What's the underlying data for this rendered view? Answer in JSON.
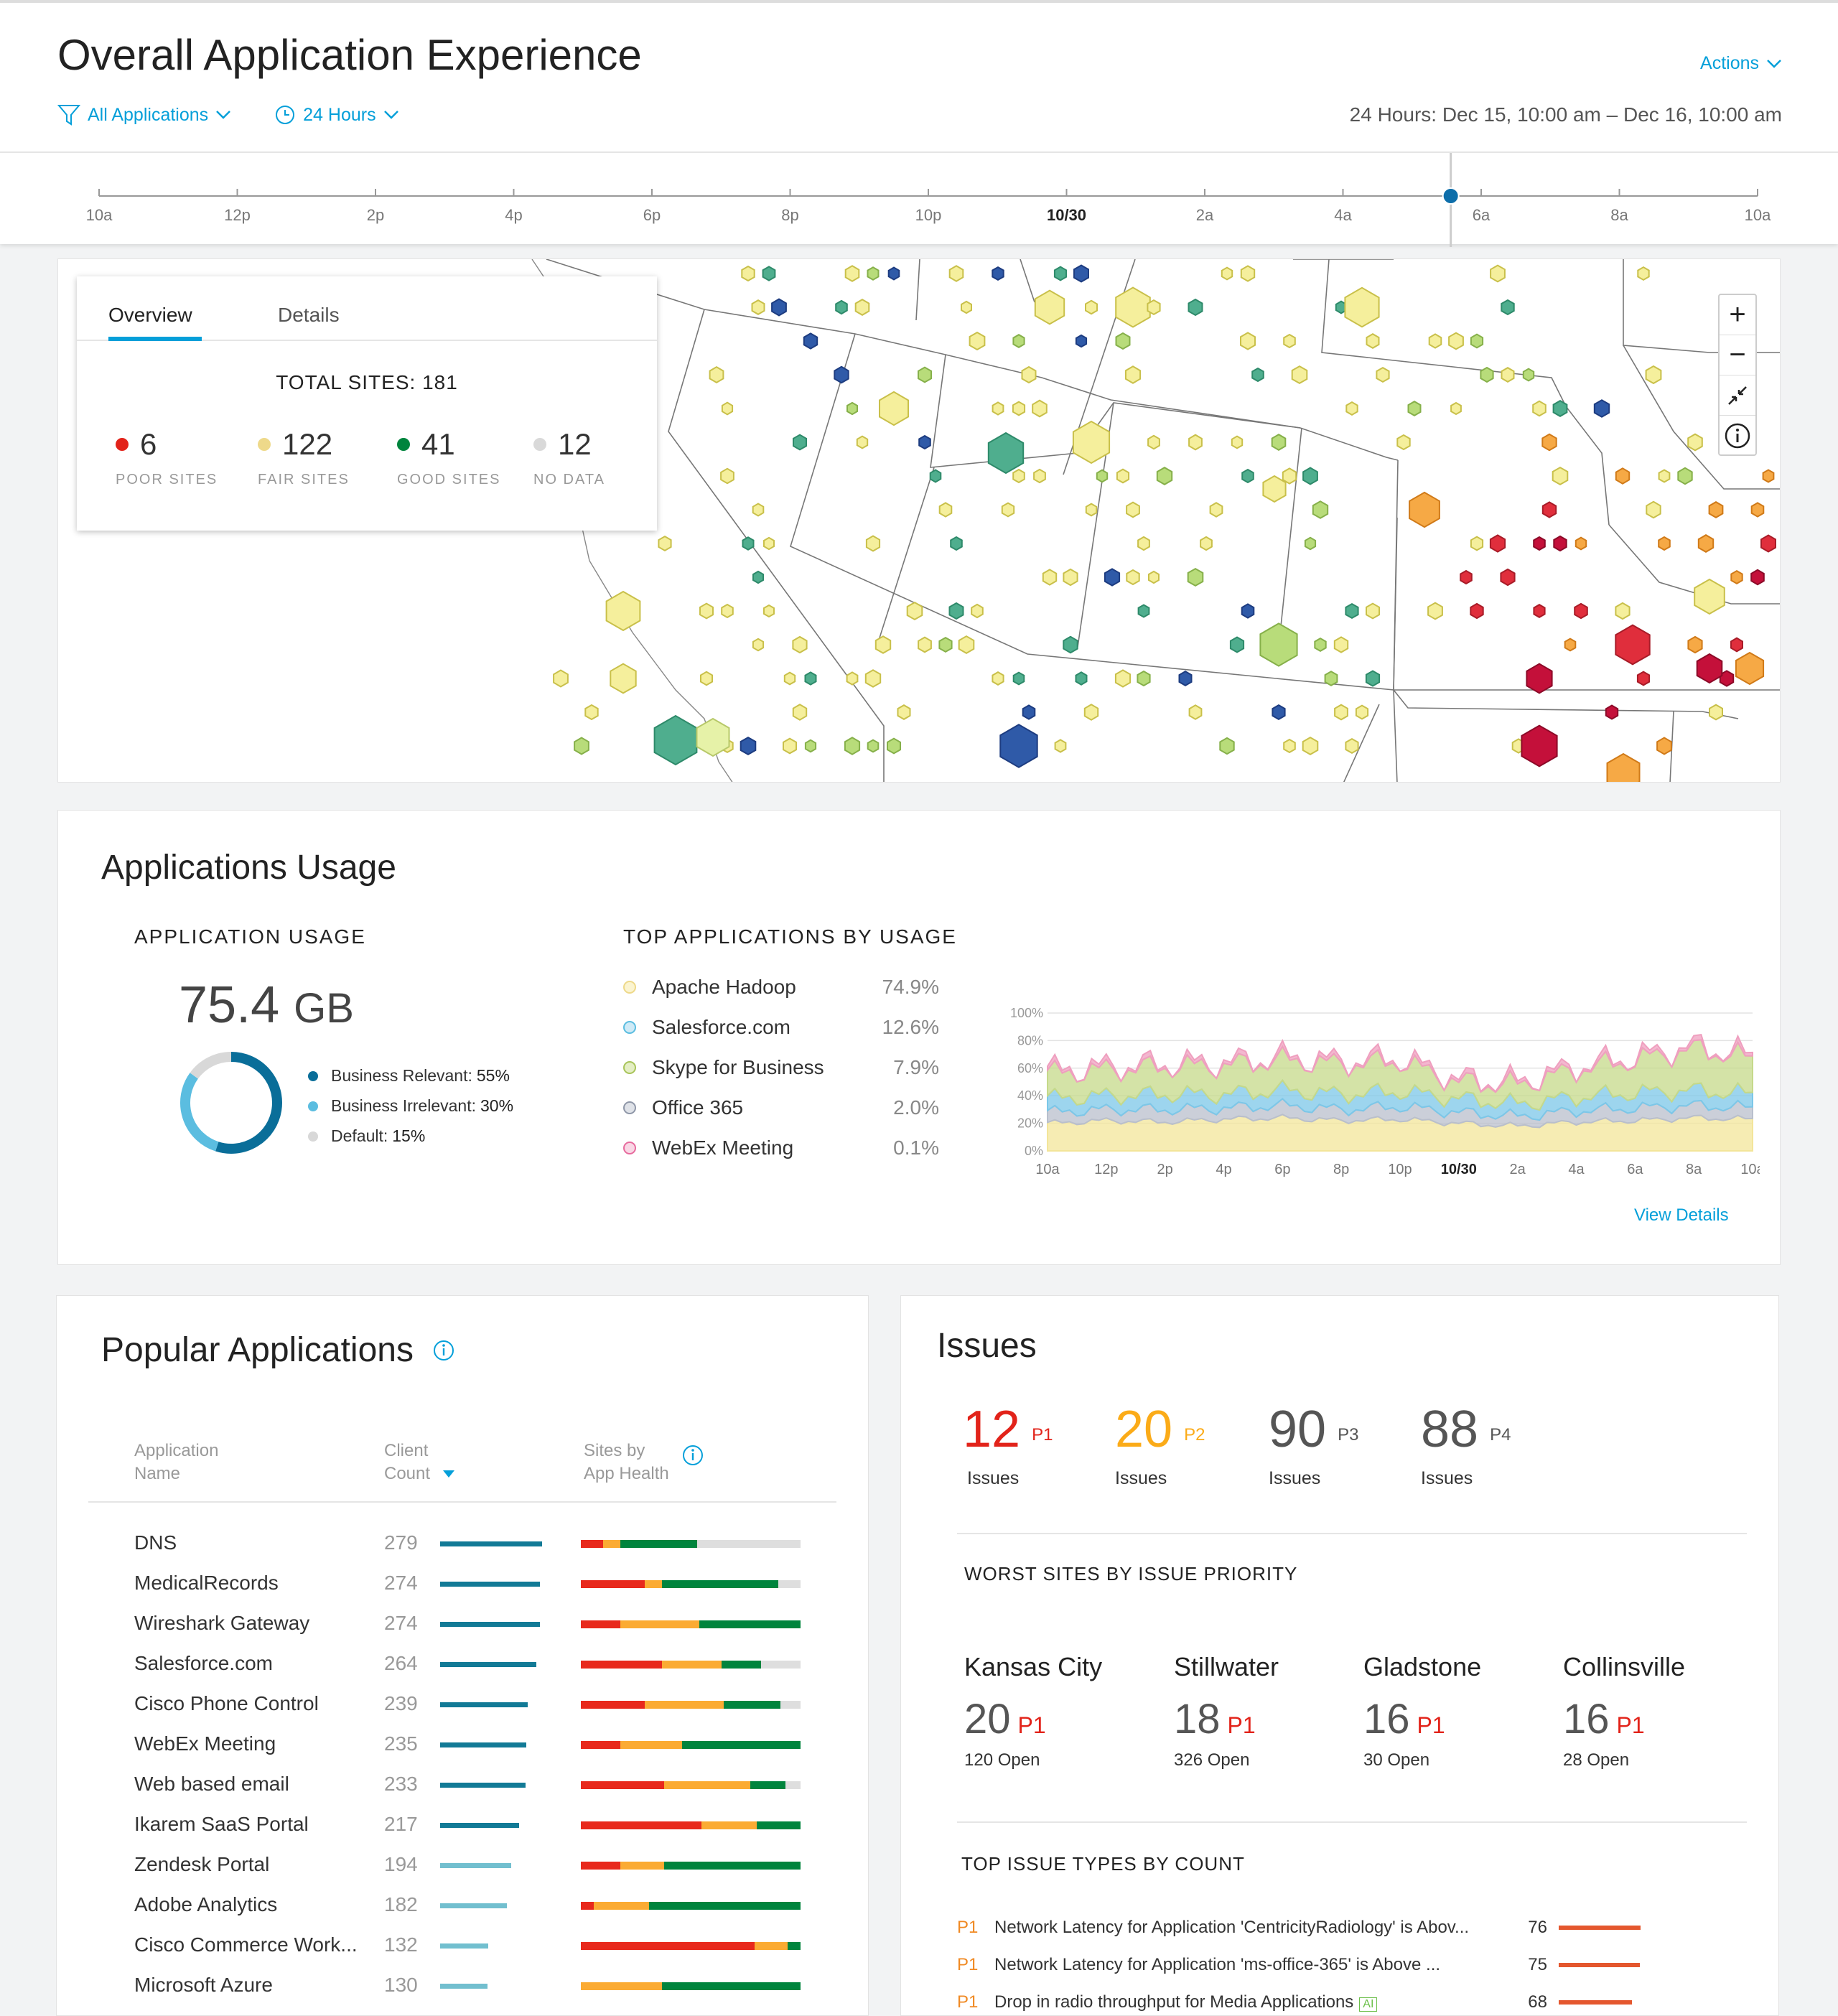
{
  "header": {
    "title": "Overall Application Experience",
    "actions_label": "Actions",
    "filter_apps": "All Applications",
    "filter_time": "24 Hours",
    "range_text": "24 Hours: Dec 15, 10:00 am – Dec 16, 10:00 am"
  },
  "timeline": {
    "ticks": [
      "10a",
      "12p",
      "2p",
      "4p",
      "6p",
      "8p",
      "10p",
      "10/30",
      "2a",
      "4a",
      "6a",
      "8a",
      "10a"
    ],
    "bold_tick": "10/30",
    "marker_fraction": 0.815
  },
  "overview": {
    "tab_overview": "Overview",
    "tab_details": "Details",
    "total": "TOTAL SITES: 181",
    "stats": [
      {
        "value": "6",
        "label": "POOR SITES",
        "color": "#e2231a"
      },
      {
        "value": "122",
        "label": "FAIR SITES",
        "color": "#eed98a"
      },
      {
        "value": "41",
        "label": "GOOD SITES",
        "color": "#00843d"
      },
      {
        "value": "12",
        "label": "NO DATA",
        "color": "#d9d9d9"
      }
    ]
  },
  "map_zoom": {
    "plus": "+",
    "minus": "−"
  },
  "usage": {
    "card_title": "Applications Usage",
    "app_usage_head": "APPLICATION USAGE",
    "total_value": "75.4",
    "total_unit": "GB",
    "breakdown": [
      {
        "label": "Business Relevant:",
        "value": "55%",
        "fraction": 0.55,
        "color": "#0a6e99"
      },
      {
        "label": "Business Irrelevant:",
        "value": "30%",
        "fraction": 0.3,
        "color": "#5bbde0"
      },
      {
        "label": "Default:",
        "value": "15%",
        "fraction": 0.15,
        "color": "#d8d8d8"
      }
    ],
    "top_head": "TOP APPLICATIONS BY USAGE",
    "top_apps": [
      {
        "name": "Apache Hadoop",
        "pct": "74.9%",
        "color": "#f3e59a"
      },
      {
        "name": "Salesforce.com",
        "pct": "12.6%",
        "color": "#7cc7e8"
      },
      {
        "name": "Skype for Business",
        "pct": "7.9%",
        "color": "#c5d98a"
      },
      {
        "name": "Office 365",
        "pct": "2.0%",
        "color": "#b9bfcc"
      },
      {
        "name": "WebEx Meeting",
        "pct": "0.1%",
        "color": "#ef9fbf"
      }
    ],
    "view_details": "View Details"
  },
  "chart_data": {
    "type": "area",
    "x": [
      "10a",
      "12p",
      "2p",
      "4p",
      "6p",
      "8p",
      "10p",
      "10/30",
      "2a",
      "4a",
      "6a",
      "8a",
      "10a"
    ],
    "y_ticks": [
      "0%",
      "20%",
      "40%",
      "60%",
      "80%",
      "100%"
    ],
    "ylim": [
      0,
      100
    ],
    "series": [
      {
        "name": "Apache Hadoop",
        "color": "#f3e59a",
        "values": [
          20,
          22,
          21,
          23,
          24,
          22,
          23,
          20,
          18,
          21,
          22,
          24,
          23
        ]
      },
      {
        "name": "Office 365",
        "color": "#b9bfcc",
        "values": [
          8,
          8,
          9,
          8,
          9,
          8,
          9,
          8,
          7,
          8,
          9,
          9,
          8
        ]
      },
      {
        "name": "Salesforce.com",
        "color": "#7cc7e8",
        "values": [
          10,
          10,
          11,
          10,
          11,
          11,
          11,
          10,
          9,
          10,
          11,
          11,
          10
        ]
      },
      {
        "name": "Skype for Business",
        "color": "#c5d98a",
        "values": [
          18,
          19,
          20,
          21,
          22,
          22,
          22,
          12,
          14,
          20,
          24,
          30,
          26
        ]
      },
      {
        "name": "WebEx Meeting",
        "color": "#ef9fbf",
        "values": [
          2,
          2,
          2,
          2,
          2,
          2,
          2,
          2,
          2,
          2,
          2,
          2,
          2
        ]
      }
    ]
  },
  "popular": {
    "card_title": "Popular Applications",
    "col_name": "Application\nName",
    "col_name_1": "Application",
    "col_name_2": "Name",
    "col_count_1": "Client",
    "col_count_2": "Count",
    "col_health_1": "Sites by",
    "col_health_2": "App Health",
    "rows": [
      {
        "name": "DNS",
        "count": "279",
        "count_value": 279,
        "health": [
          0.1,
          0.08,
          0.35,
          0.47
        ]
      },
      {
        "name": "MedicalRecords",
        "count": "274",
        "count_value": 274,
        "health": [
          0.29,
          0.08,
          0.53,
          0.1
        ]
      },
      {
        "name": "Wireshark Gateway",
        "count": "274",
        "count_value": 274,
        "health": [
          0.18,
          0.36,
          0.46,
          0.0
        ]
      },
      {
        "name": "Salesforce.com",
        "count": "264",
        "count_value": 264,
        "health": [
          0.37,
          0.27,
          0.18,
          0.18
        ]
      },
      {
        "name": "Cisco Phone Control",
        "count": "239",
        "count_value": 239,
        "health": [
          0.29,
          0.36,
          0.26,
          0.09
        ]
      },
      {
        "name": "WebEx Meeting",
        "count": "235",
        "count_value": 235,
        "health": [
          0.18,
          0.28,
          0.54,
          0.0
        ]
      },
      {
        "name": "Web based email",
        "count": "233",
        "count_value": 233,
        "health": [
          0.38,
          0.39,
          0.16,
          0.07
        ]
      },
      {
        "name": "Ikarem SaaS Portal",
        "count": "217",
        "count_value": 217,
        "health": [
          0.55,
          0.25,
          0.2,
          0.0
        ]
      },
      {
        "name": "Zendesk Portal",
        "count": "194",
        "count_value": 194,
        "health": [
          0.18,
          0.2,
          0.62,
          0.0
        ]
      },
      {
        "name": "Adobe Analytics",
        "count": "182",
        "count_value": 182,
        "health": [
          0.06,
          0.25,
          0.69,
          0.0
        ]
      },
      {
        "name": "Cisco Commerce Work...",
        "count": "132",
        "count_value": 132,
        "health": [
          0.79,
          0.15,
          0.06,
          0.0
        ]
      },
      {
        "name": "Microsoft Azure",
        "count": "130",
        "count_value": 130,
        "health": [
          0.0,
          0.37,
          0.63,
          0.0
        ]
      }
    ]
  },
  "issues": {
    "card_title": "Issues",
    "counts": [
      {
        "value": "12",
        "priority": "P1",
        "label": "Issues",
        "color": "#e2231a"
      },
      {
        "value": "20",
        "priority": "P2",
        "label": "Issues",
        "color": "#fbab18"
      },
      {
        "value": "90",
        "priority": "P3",
        "label": "Issues",
        "color": "#555555"
      },
      {
        "value": "88",
        "priority": "P4",
        "label": "Issues",
        "color": "#555555"
      }
    ],
    "worst_head": "WORST SITES BY ISSUE PRIORITY",
    "worst_sites": [
      {
        "city": "Kansas City",
        "count": "20",
        "priority": "P1",
        "open": "120 Open"
      },
      {
        "city": "Stillwater",
        "count": "18",
        "priority": "P1",
        "open": "326 Open"
      },
      {
        "city": "Gladstone",
        "count": "16",
        "priority": "P1",
        "open": "30 Open"
      },
      {
        "city": "Collinsville",
        "count": "16",
        "priority": "P1",
        "open": "28 Open"
      }
    ],
    "types_head": "TOP ISSUE TYPES BY COUNT",
    "types": [
      {
        "priority": "P1",
        "text": "Network Latency for Application 'CentricityRadiology' is Abov...",
        "count": "76",
        "count_value": 76,
        "ai": ""
      },
      {
        "priority": "P1",
        "text": "Network Latency for Application 'ms-office-365' is Above ...",
        "count": "75",
        "count_value": 75,
        "ai": ""
      },
      {
        "priority": "P1",
        "text": "Drop in radio throughput for Media Applications",
        "count": "68",
        "count_value": 68,
        "ai": "AI"
      }
    ]
  }
}
